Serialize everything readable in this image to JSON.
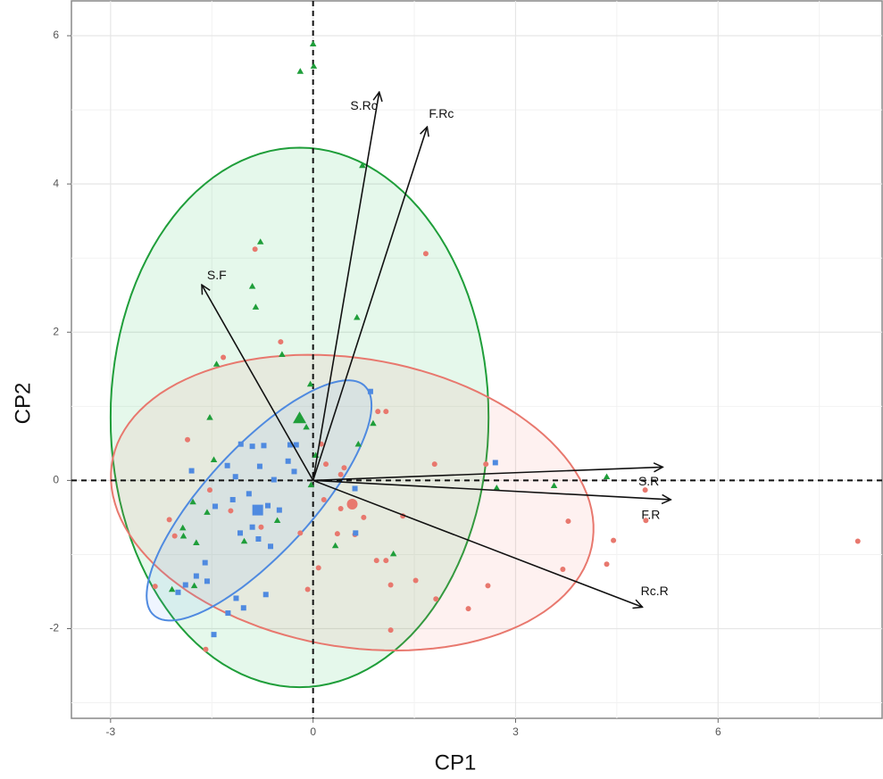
{
  "chart_data": {
    "type": "biplot",
    "x_label": "CP1",
    "y_label": "CP2",
    "xlim": [
      -3.58,
      8.43
    ],
    "ylim": [
      -3.21,
      6.47
    ],
    "xticks": [
      -3,
      0,
      3,
      6
    ],
    "yticks": [
      -2,
      0,
      2,
      4,
      6
    ],
    "grid": true,
    "reference_lines": true,
    "series": [
      {
        "marker": "circle",
        "color": "#e8786e",
        "fill": "#f8766d",
        "x": [
          -0.86,
          1.67,
          -0.48,
          -1.33,
          0.96,
          1.08,
          -1.86,
          0.12,
          1.8,
          2.56,
          0.46,
          0.41,
          0.19,
          -2.13,
          -2.05,
          -1.53,
          0.16,
          0.41,
          0.75,
          1.33,
          0.36,
          0.62,
          0.94,
          1.08,
          1.52,
          1.15,
          2.59,
          1.82,
          2.3,
          1.15,
          3.78,
          3.7,
          4.35,
          4.45,
          4.93,
          8.07,
          4.92,
          -2.34,
          -1.59,
          -0.08,
          0.08,
          -0.77,
          -0.19,
          -1.22
        ],
        "y": [
          3.12,
          3.06,
          1.87,
          1.66,
          0.93,
          0.93,
          0.55,
          0.49,
          0.22,
          0.22,
          0.17,
          0.08,
          0.22,
          -0.53,
          -0.75,
          -0.13,
          -0.26,
          -0.38,
          -0.5,
          -0.48,
          -0.72,
          -0.73,
          -1.08,
          -1.08,
          -1.35,
          -1.41,
          -1.42,
          -1.6,
          -1.73,
          -2.02,
          -0.55,
          -1.2,
          -1.13,
          -0.81,
          -0.54,
          -0.82,
          -0.13,
          -1.43,
          -2.28,
          -1.47,
          -1.18,
          -0.63,
          -0.71,
          -0.41
        ],
        "centroid": [
          0.58,
          -0.32
        ],
        "ellipse": {
          "center": [
            0.58,
            -0.3
          ],
          "semi_axes": [
            3.6,
            1.95
          ],
          "angle": -8
        }
      },
      {
        "marker": "triangle",
        "color": "#1f9e3a",
        "fill": "#00ba38",
        "x": [
          0,
          -0.19,
          0.01,
          0.73,
          -0.78,
          -0.9,
          -0.85,
          0.65,
          -1.43,
          -0.46,
          -0.04,
          -1.53,
          -0.1,
          0.67,
          -1.47,
          0.04,
          -1.78,
          -1.57,
          -1.93,
          -1.73,
          -1.92,
          -2.09,
          -1.76,
          -1.02,
          -0.53,
          0.33,
          1.19,
          2.72,
          3.57,
          4.35,
          -0.03,
          0.89
        ],
        "y": [
          5.89,
          5.52,
          5.59,
          4.25,
          3.22,
          2.62,
          2.34,
          2.2,
          1.57,
          1.7,
          1.3,
          0.85,
          0.72,
          0.49,
          0.28,
          0.34,
          -0.29,
          -0.43,
          -0.64,
          -0.84,
          -0.75,
          -1.47,
          -1.42,
          -0.82,
          -0.54,
          -0.88,
          -0.99,
          -0.1,
          -0.07,
          0.05,
          -0.06,
          0.77
        ],
        "centroid": [
          -0.2,
          0.84
        ],
        "ellipse": {
          "center": [
            -0.2,
            0.85
          ],
          "semi_axes": [
            2.8,
            3.64
          ],
          "angle": 0
        }
      },
      {
        "marker": "square",
        "color": "#4f8ae0",
        "fill": "#619cff",
        "x": [
          0.85,
          -1.07,
          -0.9,
          -0.73,
          -0.34,
          -0.25,
          -1.27,
          -0.79,
          -1.15,
          -0.58,
          -1.8,
          -0.37,
          -0.28,
          -0.95,
          -1.19,
          -1.45,
          -0.67,
          -0.5,
          -0.9,
          -1.08,
          -1.6,
          -1.73,
          -1.57,
          -2.0,
          -1.89,
          -1.14,
          -1.03,
          -1.26,
          -1.47,
          -0.7,
          -0.63,
          -0.81,
          0.63,
          2.7,
          0.62
        ],
        "y": [
          1.2,
          0.49,
          0.46,
          0.47,
          0.48,
          0.48,
          0.2,
          0.19,
          0.05,
          0.01,
          0.13,
          0.26,
          0.12,
          -0.18,
          -0.26,
          -0.35,
          -0.34,
          -0.4,
          -0.63,
          -0.71,
          -1.11,
          -1.29,
          -1.36,
          -1.51,
          -1.41,
          -1.59,
          -1.72,
          -1.79,
          -2.08,
          -1.54,
          -0.89,
          -0.79,
          -0.71,
          0.24,
          -0.11
        ],
        "centroid": [
          -0.82,
          -0.4
        ],
        "ellipse": {
          "center": [
            -0.8,
            -0.27
          ],
          "semi_axes": [
            2.2,
            0.75
          ],
          "angle": 44
        }
      }
    ],
    "loadings": [
      {
        "label": "S.Rc",
        "x": 0.98,
        "y": 5.24
      },
      {
        "label": "F.Rc",
        "x": 1.69,
        "y": 4.77
      },
      {
        "label": "S.F",
        "x": -1.65,
        "y": 2.64
      },
      {
        "label": "S.R",
        "x": 5.18,
        "y": 0.18
      },
      {
        "label": "F.R",
        "x": 5.3,
        "y": -0.26
      },
      {
        "label": "Rc.R",
        "x": 4.88,
        "y": -1.71
      }
    ]
  }
}
